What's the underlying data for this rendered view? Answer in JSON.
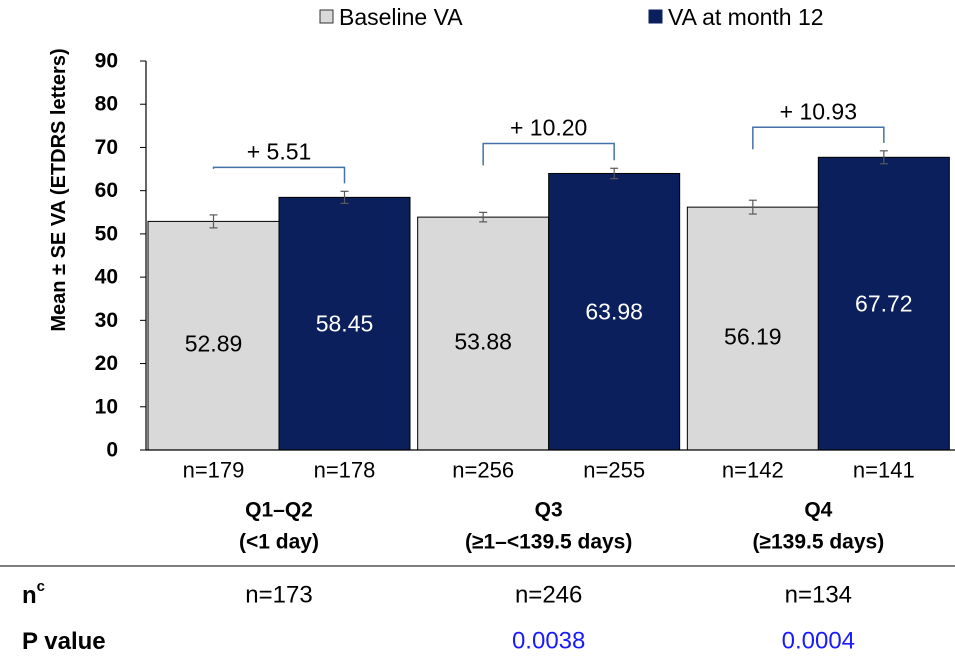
{
  "chart_data": {
    "type": "bar",
    "ylabel": "Mean ± SE VA (ETDRS letters)",
    "ylim": [
      0,
      90
    ],
    "yticks": [
      0,
      10,
      20,
      30,
      40,
      50,
      60,
      70,
      80,
      90
    ],
    "legend_position": "top",
    "series": [
      {
        "name": "Baseline VA",
        "color": "#d9d9d9",
        "values": [
          52.89,
          53.88,
          56.19
        ],
        "errors": [
          1.5,
          1.1,
          1.6
        ],
        "n_labels": [
          "n=179",
          "n=256",
          "n=142"
        ]
      },
      {
        "name": "VA at month 12",
        "color": "#0b1f5c",
        "values": [
          58.45,
          63.98,
          67.72
        ],
        "errors": [
          1.4,
          1.2,
          1.5
        ],
        "n_labels": [
          "n=178",
          "n=255",
          "n=141"
        ]
      }
    ],
    "categories": [
      {
        "line1": "Q1–Q2",
        "line2": "(<1 day)"
      },
      {
        "line1": "Q3",
        "line2": "(≥1–<139.5 days)"
      },
      {
        "line1": "Q4",
        "line2": "(≥139.5 days)"
      }
    ],
    "differences": [
      "+ 5.51",
      "+ 10.20",
      "+ 10.93"
    ]
  },
  "table": {
    "rows": [
      {
        "label": "n",
        "sup": "c",
        "values": [
          "n=173",
          "n=246",
          "n=134"
        ],
        "color": "#000000"
      },
      {
        "label": "P value",
        "sup": "",
        "values": [
          "",
          "0.0038",
          "0.0004"
        ],
        "color": "#1a1aff"
      }
    ]
  },
  "colors": {
    "bracket": "#4472a8",
    "axis": "#000000",
    "divider": "#7f7f7f"
  }
}
